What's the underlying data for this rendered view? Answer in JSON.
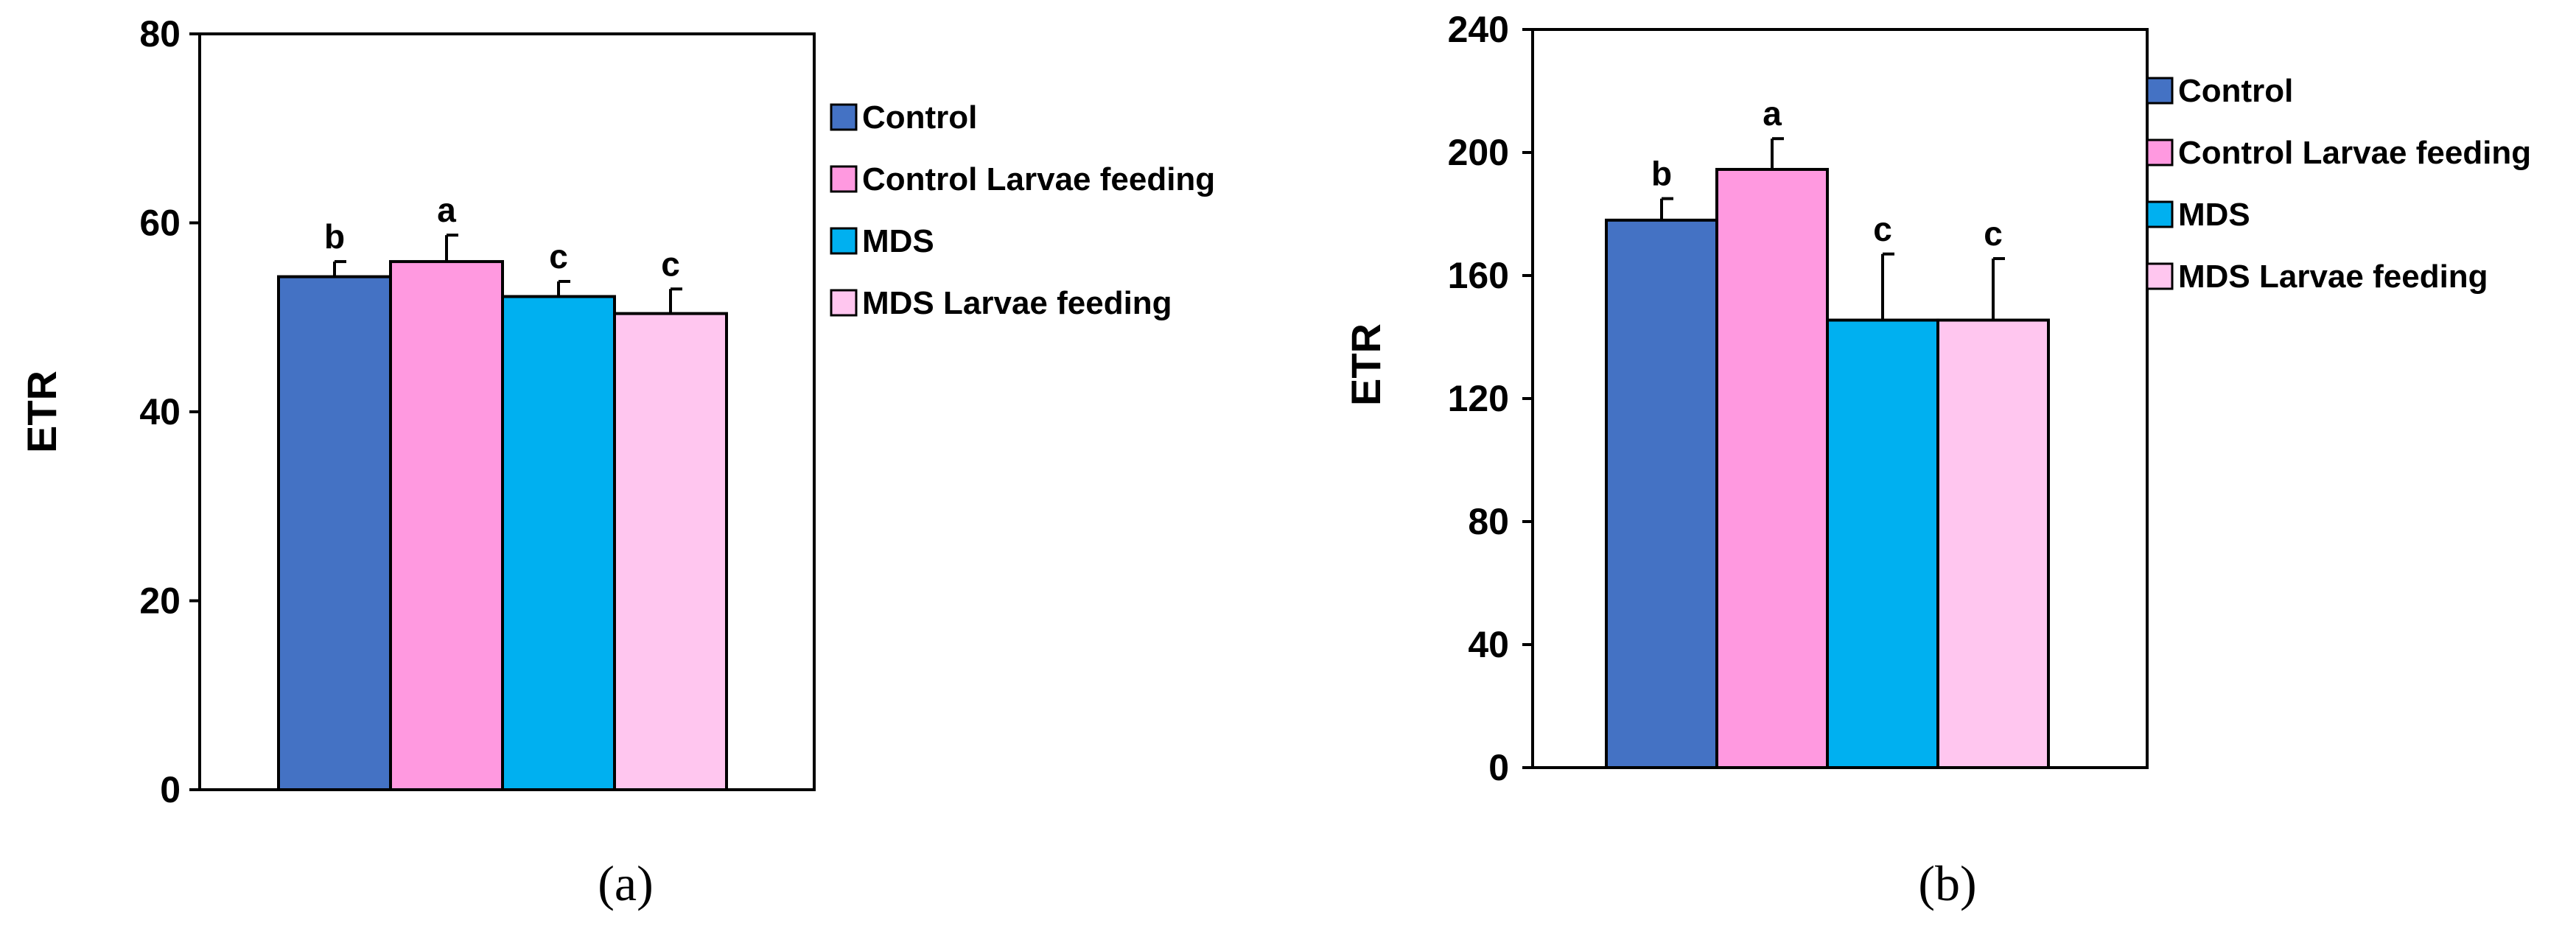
{
  "chart_data": [
    {
      "type": "bar",
      "caption": "(a)",
      "ylabel": "ETR",
      "ylim": [
        0,
        80
      ],
      "yticks": [
        "0",
        "20",
        "40",
        "60",
        "80"
      ],
      "categories": [
        "Control",
        "Control Larvae feeding",
        "MDS",
        "MDS Larvae feeding"
      ],
      "values": [
        54.3,
        55.9,
        52.2,
        50.4
      ],
      "errors": [
        1.6,
        2.8,
        1.6,
        2.6
      ],
      "letters": [
        "b",
        "a",
        "c",
        "c"
      ],
      "legend": [
        "Control",
        "Control Larvae feeding",
        "MDS",
        "MDS Larvae feeding"
      ],
      "colors": [
        "#4472c4",
        "#ff99e0",
        "#00b0f0",
        "#ffc6ef"
      ]
    },
    {
      "type": "bar",
      "caption": "(b)",
      "ylabel": "ETR",
      "ylim": [
        0,
        240
      ],
      "yticks": [
        "0",
        "40",
        "80",
        "120",
        "160",
        "200",
        "240"
      ],
      "categories": [
        "Control",
        "Control Larvae feeding",
        "MDS",
        "MDS Larvae feeding"
      ],
      "values": [
        178,
        194.5,
        145.5,
        145.5
      ],
      "errors": [
        7,
        10,
        21.5,
        20
      ],
      "letters": [
        "b",
        "a",
        "c",
        "c"
      ],
      "legend": [
        "Control",
        "Control Larvae feeding",
        "MDS",
        "MDS Larvae feeding"
      ],
      "colors": [
        "#4472c4",
        "#ff99e0",
        "#00b0f0",
        "#ffc6ef"
      ]
    }
  ]
}
